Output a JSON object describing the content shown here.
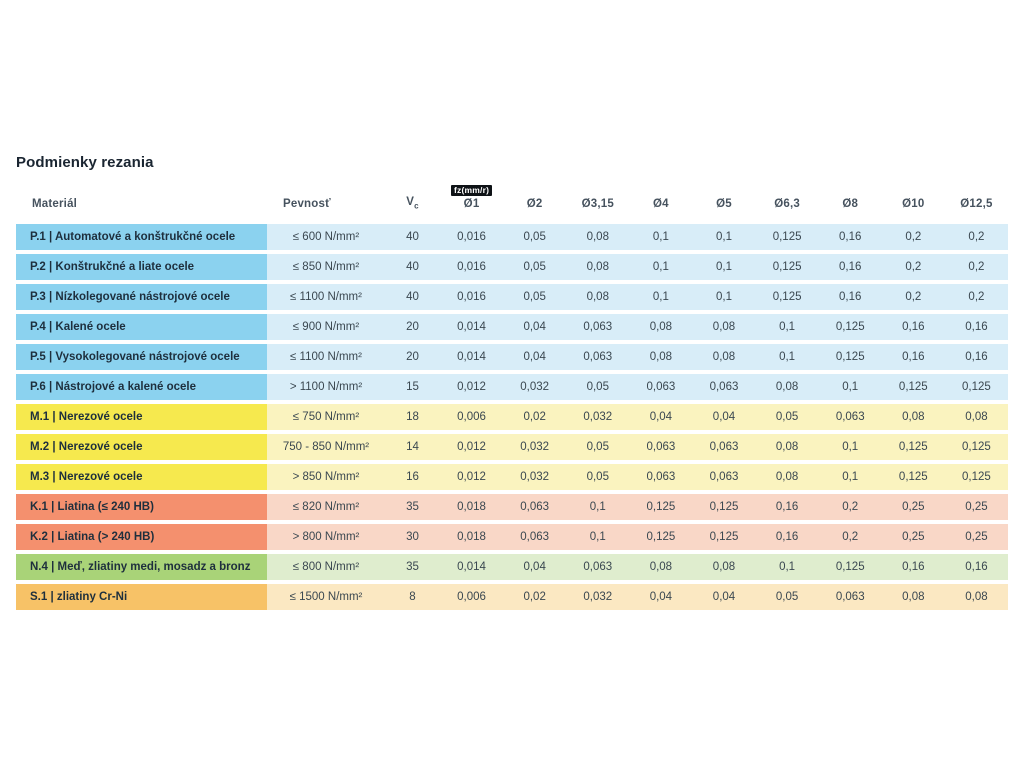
{
  "page": {
    "title": "Podmienky rezania"
  },
  "table": {
    "headers": {
      "material": "Materiál",
      "strength": "Pevnosť",
      "vc_main": "V",
      "vc_sub": "c",
      "fz_badge": "fz(mm/r)",
      "diameters": [
        "Ø1",
        "Ø2",
        "Ø3,15",
        "Ø4",
        "Ø5",
        "Ø6,3",
        "Ø8",
        "Ø10",
        "Ø12,5"
      ]
    },
    "group_colors": {
      "P": {
        "label_bg": "#8BD2EF",
        "row_bg": "#D8EDF8"
      },
      "M": {
        "label_bg": "#F6E94E",
        "row_bg": "#FAF3BF"
      },
      "K": {
        "label_bg": "#F4906E",
        "row_bg": "#F9D7C7"
      },
      "N": {
        "label_bg": "#A9D378",
        "row_bg": "#DFEDCE"
      },
      "S": {
        "label_bg": "#F7C267",
        "row_bg": "#FBE8C2"
      }
    },
    "rows": [
      {
        "group": "P",
        "label": "P.1 | Automatové a konštrukčné ocele",
        "strength": "≤ 600 N/mm²",
        "vc": "40",
        "fz": [
          "0,016",
          "0,05",
          "0,08",
          "0,1",
          "0,1",
          "0,125",
          "0,16",
          "0,2",
          "0,2"
        ]
      },
      {
        "group": "P",
        "label": "P.2 | Konštrukčné a liate ocele",
        "strength": "≤ 850 N/mm²",
        "vc": "40",
        "fz": [
          "0,016",
          "0,05",
          "0,08",
          "0,1",
          "0,1",
          "0,125",
          "0,16",
          "0,2",
          "0,2"
        ]
      },
      {
        "group": "P",
        "label": "P.3 | Nízkolegované nástrojové ocele",
        "strength": "≤ 1100 N/mm²",
        "vc": "40",
        "fz": [
          "0,016",
          "0,05",
          "0,08",
          "0,1",
          "0,1",
          "0,125",
          "0,16",
          "0,2",
          "0,2"
        ]
      },
      {
        "group": "P",
        "label": "P.4 | Kalené ocele",
        "strength": "≤ 900 N/mm²",
        "vc": "20",
        "fz": [
          "0,014",
          "0,04",
          "0,063",
          "0,08",
          "0,08",
          "0,1",
          "0,125",
          "0,16",
          "0,16"
        ]
      },
      {
        "group": "P",
        "label": "P.5 | Vysokolegované nástrojové ocele",
        "strength": "≤ 1100 N/mm²",
        "vc": "20",
        "fz": [
          "0,014",
          "0,04",
          "0,063",
          "0,08",
          "0,08",
          "0,1",
          "0,125",
          "0,16",
          "0,16"
        ]
      },
      {
        "group": "P",
        "label": "P.6 | Nástrojové a kalené ocele",
        "strength": "> 1100 N/mm²",
        "vc": "15",
        "fz": [
          "0,012",
          "0,032",
          "0,05",
          "0,063",
          "0,063",
          "0,08",
          "0,1",
          "0,125",
          "0,125"
        ]
      },
      {
        "group": "M",
        "label": "M.1 | Nerezové ocele",
        "strength": "≤ 750 N/mm²",
        "vc": "18",
        "fz": [
          "0,006",
          "0,02",
          "0,032",
          "0,04",
          "0,04",
          "0,05",
          "0,063",
          "0,08",
          "0,08"
        ]
      },
      {
        "group": "M",
        "label": "M.2 | Nerezové ocele",
        "strength": "750 - 850 N/mm²",
        "vc": "14",
        "fz": [
          "0,012",
          "0,032",
          "0,05",
          "0,063",
          "0,063",
          "0,08",
          "0,1",
          "0,125",
          "0,125"
        ]
      },
      {
        "group": "M",
        "label": "M.3 | Nerezové ocele",
        "strength": "> 850 N/mm²",
        "vc": "16",
        "fz": [
          "0,012",
          "0,032",
          "0,05",
          "0,063",
          "0,063",
          "0,08",
          "0,1",
          "0,125",
          "0,125"
        ]
      },
      {
        "group": "K",
        "label": "K.1 | Liatina (≤ 240 HB)",
        "strength": "≤ 820 N/mm²",
        "vc": "35",
        "fz": [
          "0,018",
          "0,063",
          "0,1",
          "0,125",
          "0,125",
          "0,16",
          "0,2",
          "0,25",
          "0,25"
        ]
      },
      {
        "group": "K",
        "label": "K.2 | Liatina (> 240 HB)",
        "strength": "> 800 N/mm²",
        "vc": "30",
        "fz": [
          "0,018",
          "0,063",
          "0,1",
          "0,125",
          "0,125",
          "0,16",
          "0,2",
          "0,25",
          "0,25"
        ]
      },
      {
        "group": "N",
        "label": "N.4 | Meď, zliatiny medi, mosadz a bronz",
        "strength": "≤ 800 N/mm²",
        "vc": "35",
        "fz": [
          "0,014",
          "0,04",
          "0,063",
          "0,08",
          "0,08",
          "0,1",
          "0,125",
          "0,16",
          "0,16"
        ]
      },
      {
        "group": "S",
        "label": "S.1 | zliatiny Cr-Ni",
        "strength": "≤ 1500 N/mm²",
        "vc": "8",
        "fz": [
          "0,006",
          "0,02",
          "0,032",
          "0,04",
          "0,04",
          "0,05",
          "0,063",
          "0,08",
          "0,08"
        ]
      }
    ]
  }
}
